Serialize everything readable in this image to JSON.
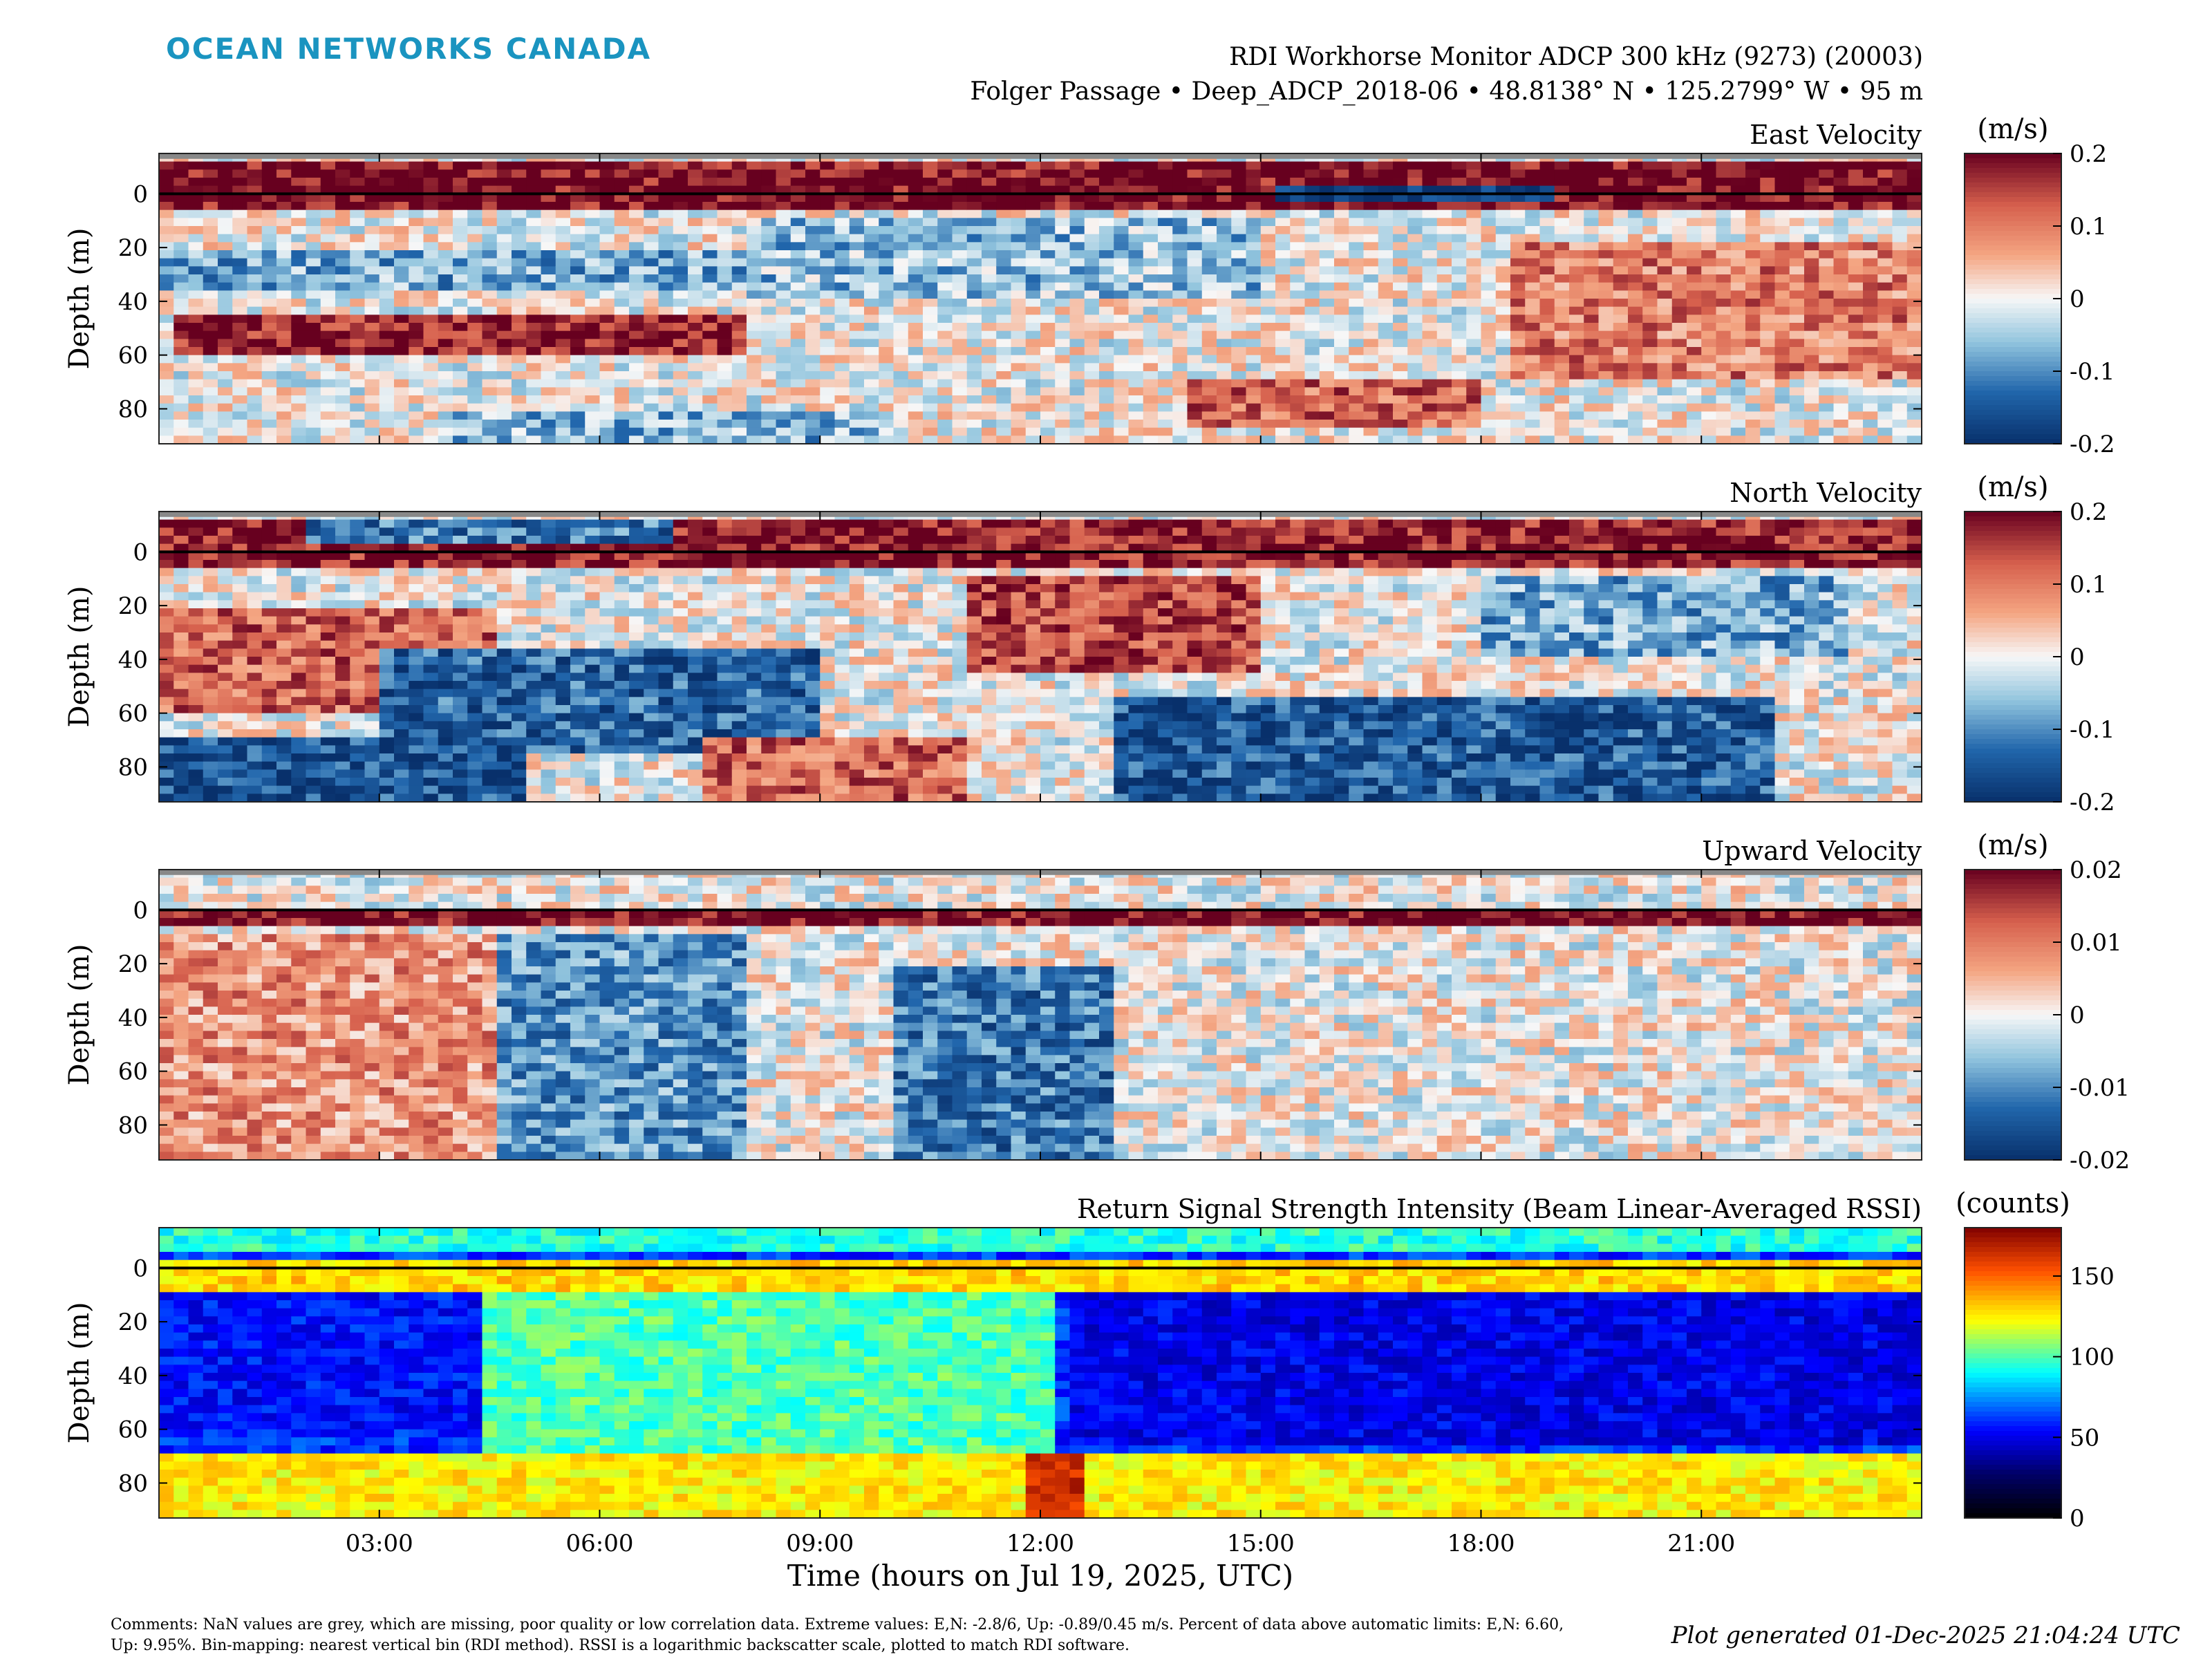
{
  "brand": {
    "text": "OCEAN NETWORKS CANADA",
    "color": "#1a94c0"
  },
  "header": {
    "title": "RDI Workhorse Monitor ADCP 300 kHz (9273) (20003)",
    "subtitle": "Folger Passage • Deep_ADCP_2018-06 • 48.8138° N • 125.2799° W • 95 m"
  },
  "chart_data": [
    {
      "type": "heatmap",
      "title": "East Velocity",
      "ylabel": "Depth (m)",
      "y_reversed": true,
      "ylim": [
        -15,
        93
      ],
      "yticks": [
        0,
        20,
        40,
        60,
        80
      ],
      "xlim": [
        0,
        24
      ],
      "xticks_hours": [
        3,
        6,
        9,
        12,
        15,
        18,
        21
      ],
      "colorbar": {
        "label": "(m/s)",
        "min": -0.2,
        "max": 0.2,
        "ticks": [
          "0.2",
          "0.1",
          "0",
          "-0.1",
          "-0.2"
        ],
        "colormap": "diverging-blue-white-red"
      },
      "surface_line_depth": 0,
      "nan_band_depth": [
        -15,
        -13
      ],
      "features": [
        {
          "t0": 0,
          "t1": 24,
          "d0": -13,
          "d1": 5,
          "v": 0.2,
          "note": "near-surface band"
        },
        {
          "t0": 15.2,
          "t1": 19,
          "d0": -3,
          "d1": 3,
          "v": -0.2
        },
        {
          "t0": 0.2,
          "t1": 8,
          "d0": 45,
          "d1": 60,
          "v": 0.18
        },
        {
          "t0": 0,
          "t1": 8.5,
          "d0": 20,
          "d1": 35,
          "v": -0.08
        },
        {
          "t0": 18.5,
          "t1": 24,
          "d0": 18,
          "d1": 70,
          "v": 0.1
        },
        {
          "t0": 8,
          "t1": 15,
          "d0": 10,
          "d1": 40,
          "v": -0.06
        },
        {
          "t0": 14,
          "t1": 18,
          "d0": 70,
          "d1": 88,
          "v": 0.12
        },
        {
          "t0": 4,
          "t1": 10,
          "d0": 80,
          "d1": 93,
          "v": -0.07
        }
      ]
    },
    {
      "type": "heatmap",
      "title": "North Velocity",
      "ylabel": "Depth (m)",
      "y_reversed": true,
      "ylim": [
        -15,
        93
      ],
      "yticks": [
        0,
        20,
        40,
        60,
        80
      ],
      "xlim": [
        0,
        24
      ],
      "xticks_hours": [
        3,
        6,
        9,
        12,
        15,
        18,
        21
      ],
      "colorbar": {
        "label": "(m/s)",
        "min": -0.2,
        "max": 0.2,
        "ticks": [
          "0.2",
          "0.1",
          "0",
          "-0.1",
          "-0.2"
        ],
        "colormap": "diverging-blue-white-red"
      },
      "surface_line_depth": 0,
      "nan_band_depth": [
        -15,
        -13
      ],
      "features": [
        {
          "t0": 0,
          "t1": 24,
          "d0": -13,
          "d1": 5,
          "v": 0.18,
          "note": "near-surface band"
        },
        {
          "t0": 2,
          "t1": 7,
          "d0": -12,
          "d1": -2,
          "v": -0.12
        },
        {
          "t0": 0,
          "t1": 4.5,
          "d0": 20,
          "d1": 60,
          "v": 0.12
        },
        {
          "t0": 3,
          "t1": 9,
          "d0": 35,
          "d1": 75,
          "v": -0.14
        },
        {
          "t0": 0,
          "t1": 5,
          "d0": 70,
          "d1": 93,
          "v": -0.16
        },
        {
          "t0": 11,
          "t1": 15,
          "d0": 10,
          "d1": 45,
          "v": 0.14
        },
        {
          "t0": 7.5,
          "t1": 11,
          "d0": 70,
          "d1": 93,
          "v": 0.12
        },
        {
          "t0": 13,
          "t1": 22,
          "d0": 55,
          "d1": 93,
          "v": -0.15
        },
        {
          "t0": 18,
          "t1": 23,
          "d0": 10,
          "d1": 40,
          "v": -0.08
        }
      ]
    },
    {
      "type": "heatmap",
      "title": "Upward Velocity",
      "ylabel": "Depth (m)",
      "y_reversed": true,
      "ylim": [
        -15,
        93
      ],
      "yticks": [
        0,
        20,
        40,
        60,
        80
      ],
      "xlim": [
        0,
        24
      ],
      "xticks_hours": [
        3,
        6,
        9,
        12,
        15,
        18,
        21
      ],
      "colorbar": {
        "label": "(m/s)",
        "min": -0.025,
        "max": 0.025,
        "ticks": [
          "0.02",
          "0.01",
          "0",
          "-0.01",
          "-0.02"
        ],
        "colormap": "diverging-blue-white-red"
      },
      "surface_line_depth": 0,
      "nan_band_depth": [
        -15,
        -13
      ],
      "features": [
        {
          "t0": 0,
          "t1": 24,
          "d0": 0,
          "d1": 5,
          "v": 0.025,
          "note": "near-surface band"
        },
        {
          "t0": 0,
          "t1": 4.8,
          "d0": 8,
          "d1": 93,
          "v": 0.01
        },
        {
          "t0": 4.6,
          "t1": 8,
          "d0": 8,
          "d1": 93,
          "v": -0.012
        },
        {
          "t0": 10,
          "t1": 13,
          "d0": 20,
          "d1": 93,
          "v": -0.015
        }
      ]
    },
    {
      "type": "heatmap",
      "title": "Return Signal Strength Intensity (Beam Linear-Averaged RSSI)",
      "ylabel": "Depth (m)",
      "xlabel": "Time (hours on Jul 19, 2025, UTC)",
      "y_reversed": true,
      "ylim": [
        -15,
        93
      ],
      "yticks": [
        0,
        20,
        40,
        60,
        80
      ],
      "xlim": [
        0,
        24
      ],
      "xticks": [
        "03:00",
        "06:00",
        "09:00",
        "12:00",
        "15:00",
        "18:00",
        "21:00"
      ],
      "xticks_hours": [
        3,
        6,
        9,
        12,
        15,
        18,
        21
      ],
      "colorbar": {
        "label": "(counts)",
        "min": 0,
        "max": 180,
        "ticks": [
          "150",
          "100",
          "50",
          "0"
        ],
        "tick_values": [
          150,
          100,
          50,
          0
        ],
        "colormap": "jet"
      },
      "surface_line_depth": 0,
      "features": [
        {
          "t0": 0,
          "t1": 24,
          "d0": -15,
          "d1": -5,
          "v": 95
        },
        {
          "t0": 0,
          "t1": 24,
          "d0": -3,
          "d1": 8,
          "v": 130
        },
        {
          "t0": 0,
          "t1": 4.5,
          "d0": 10,
          "d1": 60,
          "v": 55
        },
        {
          "t0": 4.5,
          "t1": 12.2,
          "d0": 10,
          "d1": 75,
          "v": 100
        },
        {
          "t0": 12.5,
          "t1": 24,
          "d0": 10,
          "d1": 65,
          "v": 50
        },
        {
          "t0": 0,
          "t1": 24,
          "d0": 70,
          "d1": 93,
          "v": 125
        },
        {
          "t0": 11.8,
          "t1": 12.6,
          "d0": 70,
          "d1": 93,
          "v": 165
        }
      ]
    }
  ],
  "footer": {
    "comments": "Comments: NaN values are grey, which are missing, poor quality or low correlation data. Extreme values: E,N: -2.8/6, Up: -0.89/0.45 m/s. Percent of data above automatic limits: E,N: 6.60, Up: 9.95%. Bin-mapping: nearest vertical bin (RDI method). RSSI is a logarithmic backscatter scale, plotted to match RDI software.",
    "generated": "Plot generated 01-Dec-2025 21:04:24 UTC"
  }
}
